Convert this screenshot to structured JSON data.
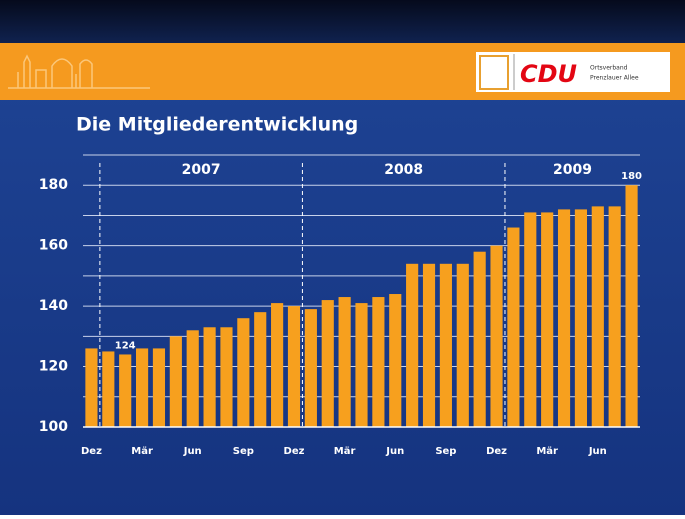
{
  "header": {
    "logo_text": "CDU",
    "logo_sub": [
      "Ortsverband",
      "Prenzlauer Allee"
    ]
  },
  "chart_data": {
    "type": "bar",
    "title": "Die Mitgliederentwicklung",
    "categories": [
      "Dez",
      null,
      null,
      "Mär",
      null,
      null,
      "Jun",
      null,
      null,
      "Sep",
      null,
      null,
      "Dez",
      null,
      null,
      "Mär",
      null,
      null,
      "Jun",
      null,
      null,
      "Sep",
      null,
      null,
      "Dez",
      null,
      null,
      "Mär",
      null,
      null,
      "Jun",
      null,
      null
    ],
    "values": [
      126,
      125,
      124,
      126,
      126,
      130,
      132,
      133,
      133,
      136,
      138,
      141,
      140,
      139,
      142,
      143,
      141,
      143,
      144,
      154,
      154,
      154,
      154,
      158,
      160,
      166,
      171,
      171,
      172,
      172,
      173,
      173,
      180
    ],
    "value_labels": [
      null,
      null,
      "124",
      null,
      null,
      null,
      null,
      null,
      null,
      null,
      null,
      null,
      null,
      null,
      null,
      null,
      null,
      null,
      null,
      null,
      null,
      null,
      null,
      null,
      null,
      null,
      null,
      null,
      null,
      null,
      null,
      null,
      "180"
    ],
    "years": [
      "2007",
      "2008",
      "2009"
    ],
    "color": "#f7a01e",
    "ylim": [
      100,
      190
    ],
    "yticks": [
      100,
      120,
      140,
      160,
      180
    ],
    "yticks_minor": [
      110,
      130,
      150,
      170,
      190
    ],
    "grid": true
  }
}
